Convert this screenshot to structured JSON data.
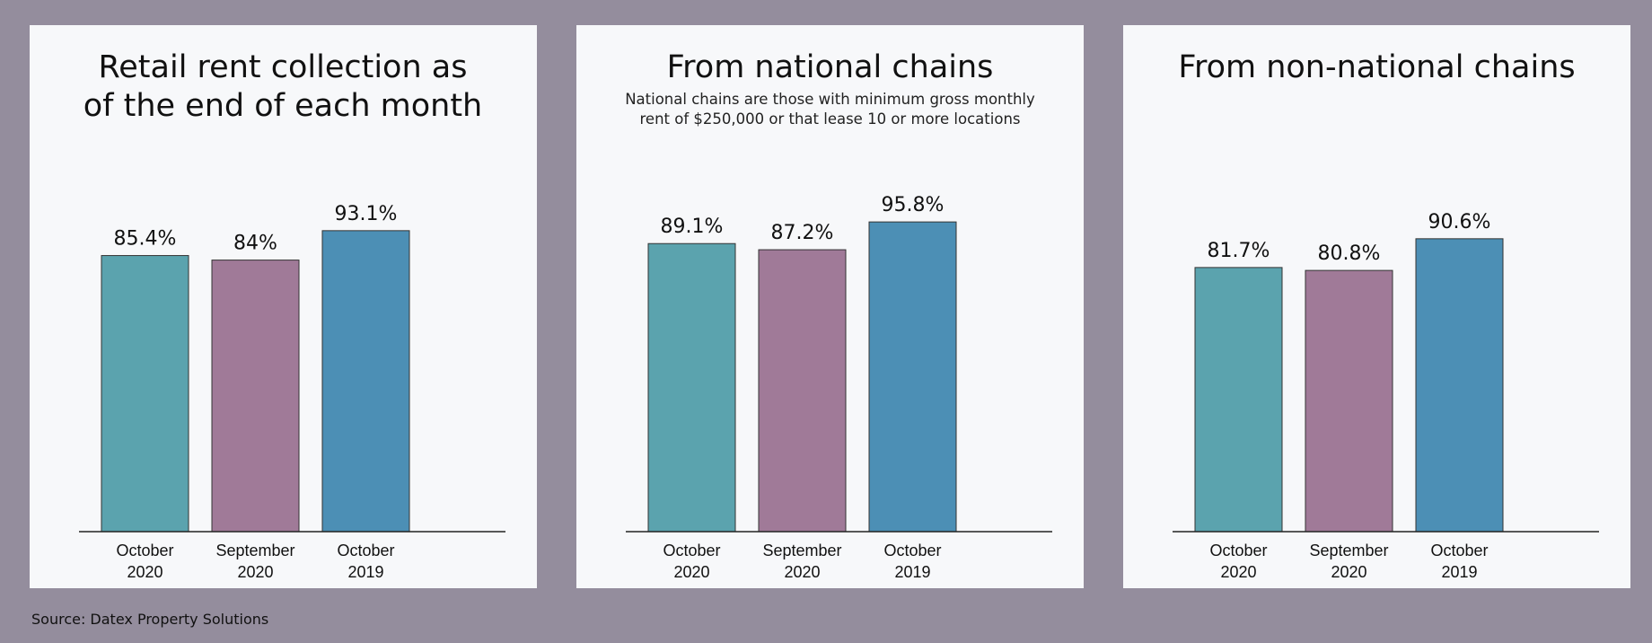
{
  "source": "Source: Datex Property Solutions",
  "colors": [
    "#5ba3ae",
    "#a07a98",
    "#4c8fb5"
  ],
  "chart_data": [
    {
      "type": "bar",
      "title": "Retail rent collection as of the end of each month",
      "subtitle": "",
      "categories": [
        [
          "October",
          "2020"
        ],
        [
          "September",
          "2020"
        ],
        [
          "October",
          "2019"
        ]
      ],
      "values": [
        85.4,
        84,
        93.1
      ],
      "value_labels": [
        "85.4%",
        "84%",
        "93.1%"
      ],
      "ylim": [
        0,
        100
      ]
    },
    {
      "type": "bar",
      "title": "From national chains",
      "subtitle": "National chains are those with minimum gross monthly rent of $250,000 or that lease 10 or more locations",
      "categories": [
        [
          "October",
          "2020"
        ],
        [
          "September",
          "2020"
        ],
        [
          "October",
          "2019"
        ]
      ],
      "values": [
        89.1,
        87.2,
        95.8
      ],
      "value_labels": [
        "89.1%",
        "87.2%",
        "95.8%"
      ],
      "ylim": [
        0,
        100
      ]
    },
    {
      "type": "bar",
      "title": "From non-national chains",
      "subtitle": "",
      "categories": [
        [
          "October",
          "2020"
        ],
        [
          "September",
          "2020"
        ],
        [
          "October",
          "2019"
        ]
      ],
      "values": [
        81.7,
        80.8,
        90.6
      ],
      "value_labels": [
        "81.7%",
        "80.8%",
        "90.6%"
      ],
      "ylim": [
        0,
        100
      ]
    }
  ]
}
